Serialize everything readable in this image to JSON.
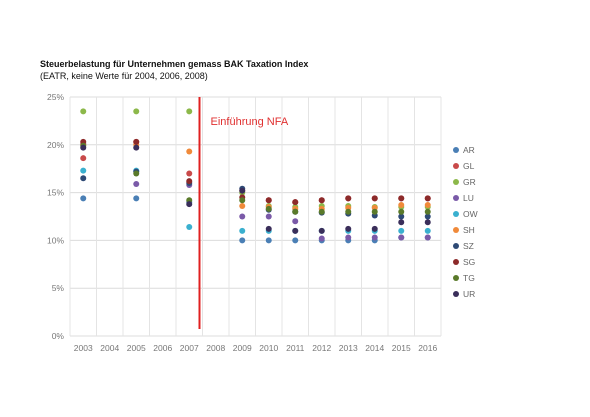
{
  "chart_data": {
    "type": "scatter",
    "title": "Steuerbelastung für Unternehmen gemass BAK Taxation Index",
    "subtitle": "(EATR, keine Werte für 2004, 2006, 2008)",
    "categories": [
      "2003",
      "2004",
      "2005",
      "2006",
      "2007",
      "2008",
      "2009",
      "2010",
      "2011",
      "2012",
      "2013",
      "2014",
      "2015",
      "2016"
    ],
    "y_ticks": [
      "0%",
      "5%",
      "10%",
      "15%",
      "20%",
      "25%"
    ],
    "ylim": [
      0,
      25
    ],
    "grid": true,
    "legend_position": "right",
    "annotation": {
      "text": "Einführung NFA",
      "x": "2008"
    },
    "series": [
      {
        "name": "AR",
        "color": "#4a7fb5",
        "values": [
          14.4,
          null,
          14.4,
          null,
          14.0,
          null,
          10.0,
          10.0,
          10.0,
          10.0,
          10.0,
          10.0,
          10.3,
          10.3
        ]
      },
      {
        "name": "GL",
        "color": "#c94a4a",
        "values": [
          18.6,
          null,
          20.3,
          null,
          17.0,
          null,
          15.2,
          14.2,
          14.0,
          14.2,
          14.4,
          14.4,
          14.4,
          14.4
        ]
      },
      {
        "name": "GR",
        "color": "#8cb84a",
        "values": [
          23.5,
          null,
          23.5,
          null,
          23.5,
          null,
          15.0,
          13.6,
          13.5,
          13.6,
          13.6,
          13.5,
          13.5,
          13.5
        ]
      },
      {
        "name": "LU",
        "color": "#7a5aa8",
        "values": [
          20.1,
          null,
          15.9,
          null,
          15.8,
          null,
          12.5,
          12.5,
          12.0,
          10.2,
          10.3,
          10.3,
          10.3,
          10.3
        ]
      },
      {
        "name": "OW",
        "color": "#3ab0cf",
        "values": [
          17.3,
          null,
          17.3,
          null,
          11.4,
          null,
          11.0,
          11.0,
          11.0,
          11.0,
          11.0,
          11.0,
          11.0,
          11.0
        ]
      },
      {
        "name": "SH",
        "color": "#f08a3a",
        "values": [
          20.0,
          null,
          20.0,
          null,
          19.3,
          null,
          13.6,
          13.5,
          13.3,
          13.3,
          13.4,
          13.4,
          13.7,
          13.7
        ]
      },
      {
        "name": "SZ",
        "color": "#2e4a75",
        "values": [
          16.5,
          null,
          17.2,
          null,
          16.0,
          null,
          15.4,
          13.2,
          13.0,
          12.9,
          12.8,
          12.6,
          12.5,
          12.5
        ]
      },
      {
        "name": "SG",
        "color": "#8c2a2a",
        "values": [
          20.3,
          null,
          20.3,
          null,
          16.2,
          null,
          14.5,
          14.2,
          14.0,
          14.2,
          14.4,
          14.4,
          14.4,
          14.4
        ]
      },
      {
        "name": "TG",
        "color": "#5a7a2a",
        "values": [
          19.9,
          null,
          17.0,
          null,
          14.2,
          null,
          14.2,
          13.3,
          13.0,
          13.0,
          13.0,
          13.0,
          13.0,
          13.0
        ]
      },
      {
        "name": "UR",
        "color": "#3a2e5a",
        "values": [
          19.7,
          null,
          19.7,
          null,
          13.8,
          null,
          15.2,
          11.2,
          11.0,
          11.0,
          11.2,
          11.2,
          11.9,
          11.9
        ]
      }
    ]
  }
}
